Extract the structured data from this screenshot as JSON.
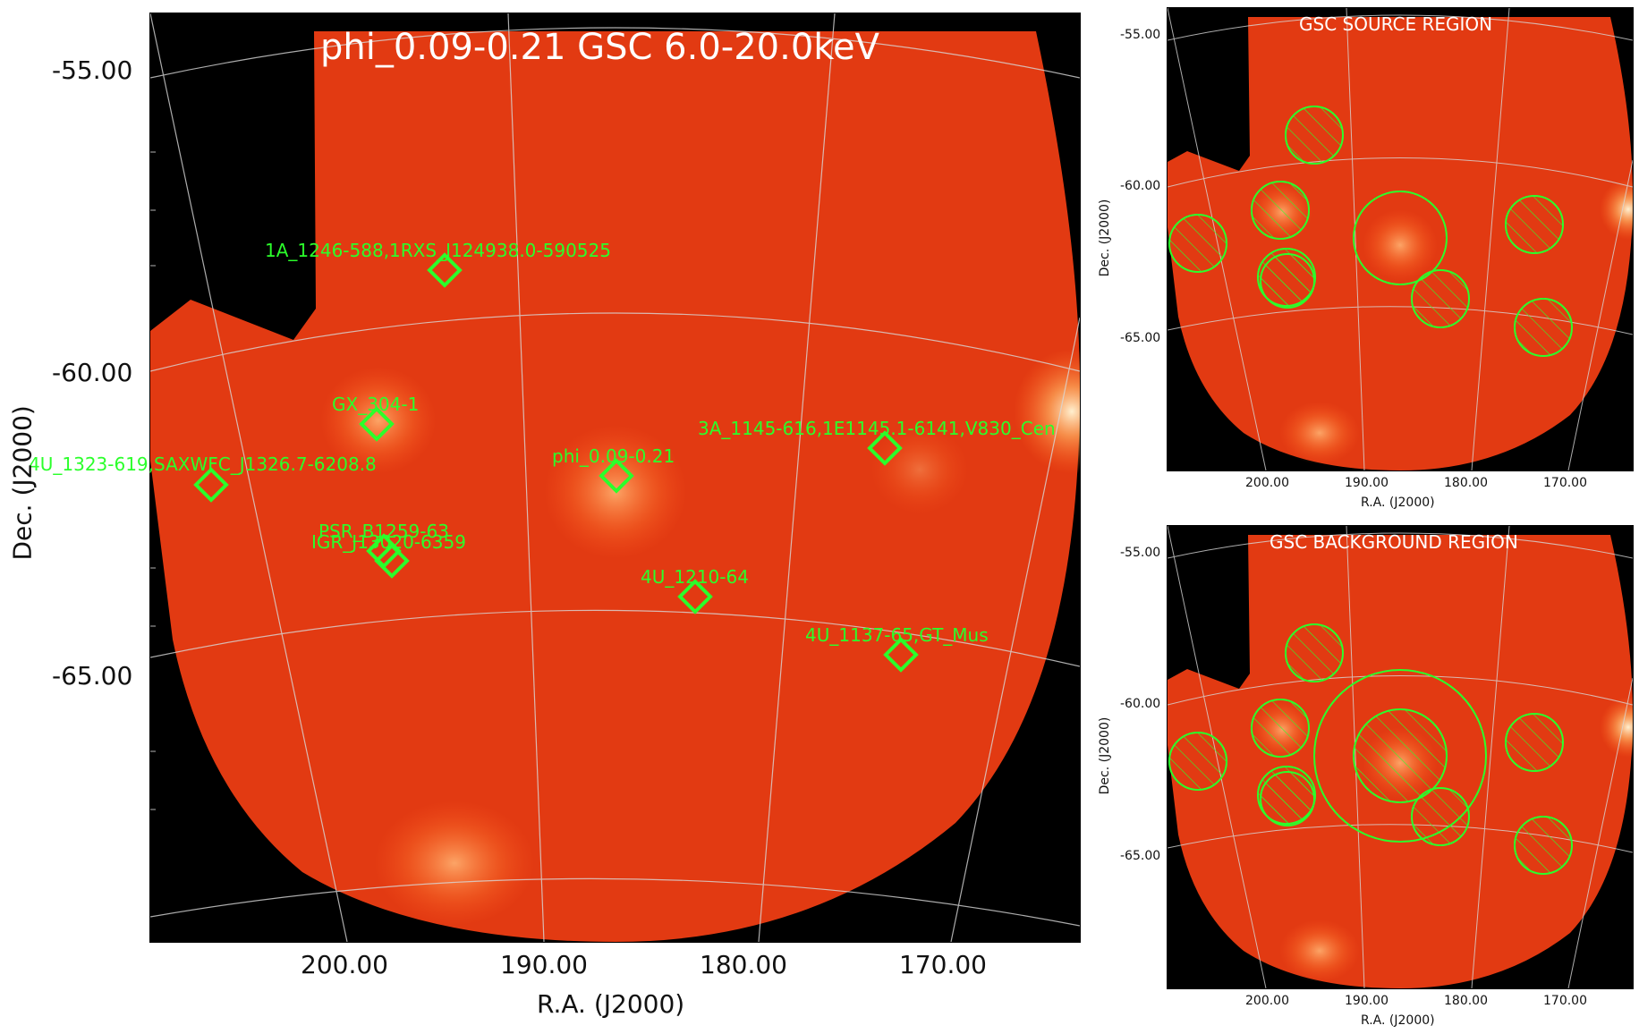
{
  "main": {
    "title": "phi_0.09-0.21 GSC 6.0-20.0keV",
    "xlabel": "R.A. (J2000)",
    "ylabel": "Dec. (J2000)",
    "xticks": [
      "200.00",
      "190.00",
      "180.00",
      "170.00"
    ],
    "yticks": [
      "-55.00",
      "-60.00",
      "-65.00"
    ],
    "sources": [
      {
        "name": "1A_1246-588,1RXS_J124938.0-590525"
      },
      {
        "name": "GX_304-1"
      },
      {
        "name": "3A_1145-616,1E1145.1-6141,V830_Cen"
      },
      {
        "name": "phi_0.09-0.21"
      },
      {
        "name": "4U_1323-619,SAXWFC_J1326.7-6208.8"
      },
      {
        "name": "PSR_B1259-63"
      },
      {
        "name": "IGR_J13020-6359"
      },
      {
        "name": "4U_1210-64"
      },
      {
        "name": "4U_1137-65,GT_Mus"
      }
    ]
  },
  "source_panel": {
    "title": "GSC SOURCE REGION",
    "xlabel": "R.A. (J2000)",
    "ylabel": "Dec. (J2000)",
    "xticks": [
      "200.00",
      "190.00",
      "180.00",
      "170.00"
    ],
    "yticks": [
      "-55.00",
      "-60.00",
      "-65.00"
    ]
  },
  "background_panel": {
    "title": "GSC BACKGROUND REGION",
    "xlabel": "R.A. (J2000)",
    "ylabel": "Dec. (J2000)",
    "xticks": [
      "200.00",
      "190.00",
      "180.00",
      "170.00"
    ],
    "yticks": [
      "-55.00",
      "-60.00",
      "-65.00"
    ]
  },
  "colors": {
    "region_green": "#2bff2b",
    "field_red": "#e8360f",
    "grid": "#d8d8d8"
  }
}
